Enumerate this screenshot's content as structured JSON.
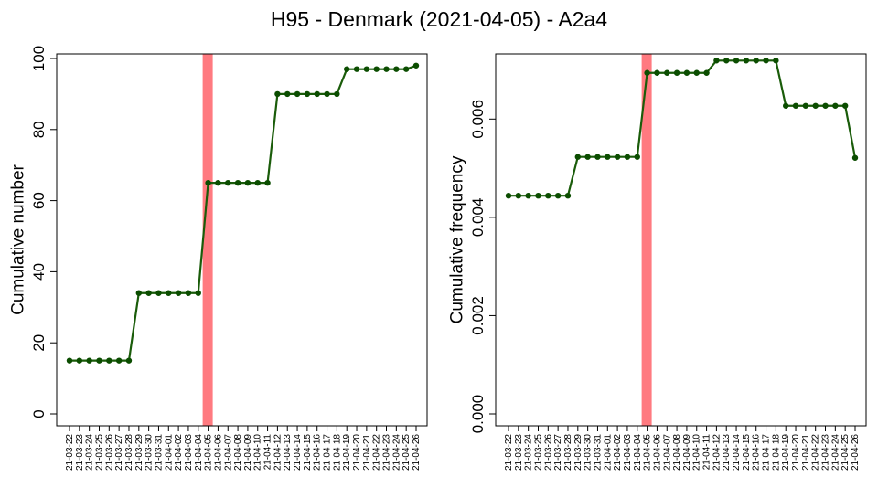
{
  "title": "H95 - Denmark (2021-04-05) - A2a4",
  "colors": {
    "line": "#1a5c0a",
    "point": "#0b4d00",
    "highlight": "#ff7a80",
    "frame": "#000000"
  },
  "chart_data": [
    {
      "type": "line",
      "ylabel": "Cumulative number",
      "ylim": [
        0,
        100
      ],
      "yticks": [
        "0",
        "20",
        "40",
        "60",
        "80",
        "100"
      ],
      "highlight_category": "21-04-05",
      "categories": [
        "21-03-22",
        "21-03-23",
        "21-03-24",
        "21-03-25",
        "21-03-26",
        "21-03-27",
        "21-03-28",
        "21-03-29",
        "21-03-30",
        "21-03-31",
        "21-04-01",
        "21-04-02",
        "21-04-03",
        "21-04-04",
        "21-04-05",
        "21-04-06",
        "21-04-07",
        "21-04-08",
        "21-04-09",
        "21-04-10",
        "21-04-11",
        "21-04-12",
        "21-04-13",
        "21-04-14",
        "21-04-15",
        "21-04-16",
        "21-04-17",
        "21-04-18",
        "21-04-19",
        "21-04-20",
        "21-04-21",
        "21-04-22",
        "21-04-23",
        "21-04-24",
        "21-04-25",
        "21-04-26"
      ],
      "values": [
        15,
        15,
        15,
        15,
        15,
        15,
        15,
        34,
        34,
        34,
        34,
        34,
        34,
        34,
        65,
        65,
        65,
        65,
        65,
        65,
        65,
        90,
        90,
        90,
        90,
        90,
        90,
        90,
        97,
        97,
        97,
        97,
        97,
        97,
        97,
        98
      ]
    },
    {
      "type": "line",
      "ylabel": "Cumulative frequency",
      "ylim": [
        0,
        0.0074
      ],
      "yticks": [
        "0.000",
        "0.002",
        "0.004",
        "0.006"
      ],
      "highlight_category": "21-04-05",
      "categories": [
        "21-03-22",
        "21-03-23",
        "21-03-24",
        "21-03-25",
        "21-03-26",
        "21-03-27",
        "21-03-28",
        "21-03-29",
        "21-03-30",
        "21-03-31",
        "21-04-01",
        "21-04-02",
        "21-04-03",
        "21-04-04",
        "21-04-05",
        "21-04-06",
        "21-04-07",
        "21-04-08",
        "21-04-09",
        "21-04-10",
        "21-04-11",
        "21-04-12",
        "21-04-13",
        "21-04-14",
        "21-04-15",
        "21-04-16",
        "21-04-17",
        "21-04-18",
        "21-04-19",
        "21-04-20",
        "21-04-21",
        "21-04-22",
        "21-04-23",
        "21-04-24",
        "21-04-25",
        "21-04-26"
      ],
      "values": [
        0.00444,
        0.00444,
        0.00444,
        0.00444,
        0.00444,
        0.00444,
        0.00444,
        0.00523,
        0.00523,
        0.00523,
        0.00523,
        0.00523,
        0.00523,
        0.00523,
        0.00694,
        0.00694,
        0.00694,
        0.00694,
        0.00694,
        0.00694,
        0.00694,
        0.00719,
        0.00719,
        0.00719,
        0.00719,
        0.00719,
        0.00719,
        0.00719,
        0.00627,
        0.00627,
        0.00627,
        0.00627,
        0.00627,
        0.00627,
        0.00627,
        0.00521
      ]
    }
  ]
}
